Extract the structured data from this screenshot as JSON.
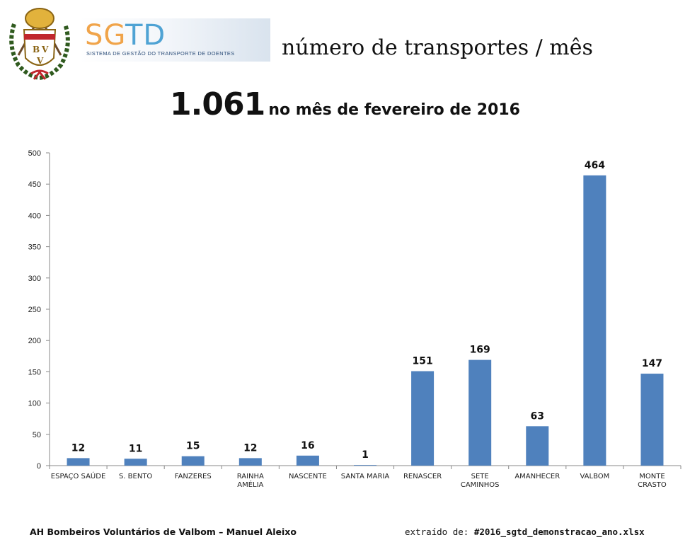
{
  "header": {
    "crest_letters": [
      "B",
      "V",
      "V"
    ],
    "logo_word_part1": "SG",
    "logo_word_part2": "TD",
    "logo_subtitle": "SISTEMA DE GESTÃO DO TRANSPORTE DE DOENTES",
    "title": "número de transportes / mês"
  },
  "headline": {
    "total": "1.061",
    "period_text": "no mês de fevereiro de 2016"
  },
  "footer": {
    "author": "AH Bombeiros Voluntários de Valbom – Manuel Aleixo",
    "source_label": "extraído de:",
    "source_file": "#2016_sgtd_demonstracao_ano.xlsx"
  },
  "chart_data": {
    "type": "bar",
    "categories": [
      [
        "ESPAÇO SAÚDE"
      ],
      [
        "S. BENTO"
      ],
      [
        "FANZERES"
      ],
      [
        "RAINHA",
        "AMÉLIA"
      ],
      [
        "NASCENTE"
      ],
      [
        "SANTA MARIA"
      ],
      [
        "RENASCER"
      ],
      [
        "SETE",
        "CAMINHOS"
      ],
      [
        "AMANHECER"
      ],
      [
        "VALBOM"
      ],
      [
        "MONTE",
        "CRASTO"
      ]
    ],
    "values": [
      12,
      11,
      15,
      12,
      16,
      1,
      151,
      169,
      63,
      464,
      147
    ],
    "data_labels": [
      "12",
      "11",
      "15",
      "12",
      "16",
      "1",
      "151",
      "169",
      "63",
      "464",
      "147"
    ],
    "ylim": [
      0,
      500
    ],
    "yticks": [
      0,
      50,
      100,
      150,
      200,
      250,
      300,
      350,
      400,
      450,
      500
    ],
    "xlabel": "",
    "ylabel": "",
    "grid": false,
    "legend": "none",
    "bar_color": "#4f81bd"
  }
}
